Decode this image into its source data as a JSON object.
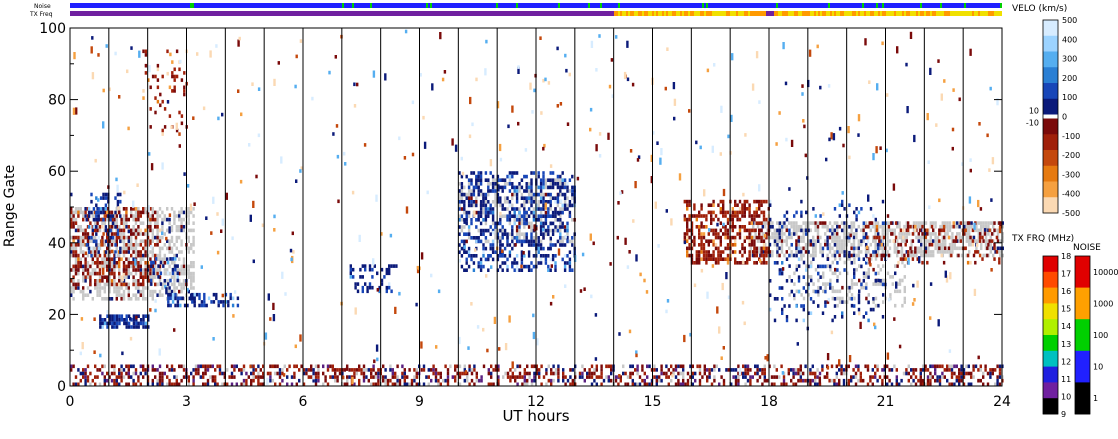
{
  "chart_data": {
    "type": "heatmap",
    "xlabel": "UT hours",
    "ylabel": "Range Gate",
    "xlim": [
      0,
      24
    ],
    "ylim": [
      0,
      100
    ],
    "x_ticks": [
      "0",
      "3",
      "6",
      "9",
      "12",
      "15",
      "18",
      "21",
      "24"
    ],
    "y_ticks": [
      "0",
      "20",
      "40",
      "60",
      "80",
      "100"
    ],
    "strip_labels": {
      "noise": "Noise",
      "txfreq": "TX Freq"
    },
    "txfreq_switch_hour": 14,
    "velocity_colorbar": {
      "title": "VELO (km/s)",
      "ticks": [
        "500",
        "400",
        "300",
        "200",
        "100",
        "0",
        "-100",
        "-200",
        "-300",
        "-400",
        "-500"
      ],
      "near_zero_labels": [
        "10",
        "-10"
      ],
      "colors": [
        "#d7ecff",
        "#9cd3ff",
        "#55aef0",
        "#2a7fd4",
        "#1846b8",
        "#0b1a7a",
        "#7a0a0a",
        "#a0200a",
        "#c4480c",
        "#e67a10",
        "#f5a040",
        "#fbd9b3"
      ]
    },
    "txfreq_colorbar": {
      "title": "TX FRQ (MHz)",
      "ticks": [
        "18",
        "17",
        "16",
        "15",
        "14",
        "13",
        "12",
        "11",
        "10",
        "9"
      ],
      "colors": [
        "#e00000",
        "#ff4a00",
        "#ff9a00",
        "#f0e000",
        "#b0f000",
        "#00d000",
        "#00c0c0",
        "#2020e0",
        "#7020a0",
        "#000000"
      ]
    },
    "noise_colorbar": {
      "title": "NOISE",
      "ticks": [
        "10000",
        "1000",
        "100",
        "10",
        "1"
      ],
      "colors": [
        "#e00000",
        "#ffa000",
        "#00d000",
        "#2020ff",
        "#000000"
      ]
    },
    "ground_scatter_color": "#c8c8c8",
    "scatter_regions": [
      {
        "name": "ground-scatter-band-early",
        "type": "gs",
        "x": [
          0.0,
          3.2
        ],
        "y": [
          24,
          50
        ],
        "density": 0.55
      },
      {
        "name": "ground-scatter-band-mid",
        "type": "gs",
        "x": [
          10.0,
          13.0
        ],
        "y": [
          40,
          58
        ],
        "density": 0.35
      },
      {
        "name": "ground-scatter-band-late",
        "type": "gs",
        "x": [
          17.5,
          24.0
        ],
        "y": [
          36,
          46
        ],
        "density": 0.6
      },
      {
        "name": "ground-scatter-band-late-lower",
        "type": "gs",
        "x": [
          18.5,
          21.5
        ],
        "y": [
          22,
          36
        ],
        "density": 0.25
      },
      {
        "name": "negative-velocity-early",
        "type": "neg",
        "x": [
          0.0,
          2.3
        ],
        "y": [
          28,
          50
        ],
        "density": 0.35
      },
      {
        "name": "positive-velocity-early",
        "type": "pos",
        "x": [
          0.4,
          1.3
        ],
        "y": [
          36,
          54
        ],
        "density": 0.3
      },
      {
        "name": "positive-velocity-patch-1h",
        "type": "pos",
        "x": [
          0.75,
          2.0
        ],
        "y": [
          16,
          20
        ],
        "density": 0.75
      },
      {
        "name": "positive-velocity-patch-3h",
        "type": "pos",
        "x": [
          2.5,
          4.4
        ],
        "y": [
          22,
          26
        ],
        "density": 0.45
      },
      {
        "name": "positive-velocity-patch-2h",
        "type": "pos",
        "x": [
          2.0,
          2.8
        ],
        "y": [
          28,
          36
        ],
        "density": 0.3
      },
      {
        "name": "negative-velocity-streak-2h",
        "type": "neg",
        "x": [
          1.8,
          3.0
        ],
        "y": [
          70,
          94
        ],
        "density": 0.12
      },
      {
        "name": "positive-velocity-patch-8h",
        "type": "pos",
        "x": [
          7.2,
          8.4
        ],
        "y": [
          26,
          34
        ],
        "density": 0.3
      },
      {
        "name": "positive-velocity-bifurcation",
        "type": "pos",
        "x": [
          10.0,
          13.0
        ],
        "y": [
          32,
          60
        ],
        "density": 0.4
      },
      {
        "name": "negative-velocity-16h",
        "type": "neg",
        "x": [
          15.8,
          18.0
        ],
        "y": [
          34,
          52
        ],
        "density": 0.5
      },
      {
        "name": "positive-velocity-19h",
        "type": "pos",
        "x": [
          18.0,
          21.0
        ],
        "y": [
          18,
          52
        ],
        "density": 0.12
      },
      {
        "name": "negative-velocity-22h",
        "type": "neg",
        "x": [
          20.5,
          24.0
        ],
        "y": [
          34,
          46
        ],
        "density": 0.2
      },
      {
        "name": "near-range-clutter",
        "type": "near",
        "x": [
          0.0,
          24.0
        ],
        "y": [
          0,
          6
        ],
        "density": 0.45
      }
    ]
  }
}
